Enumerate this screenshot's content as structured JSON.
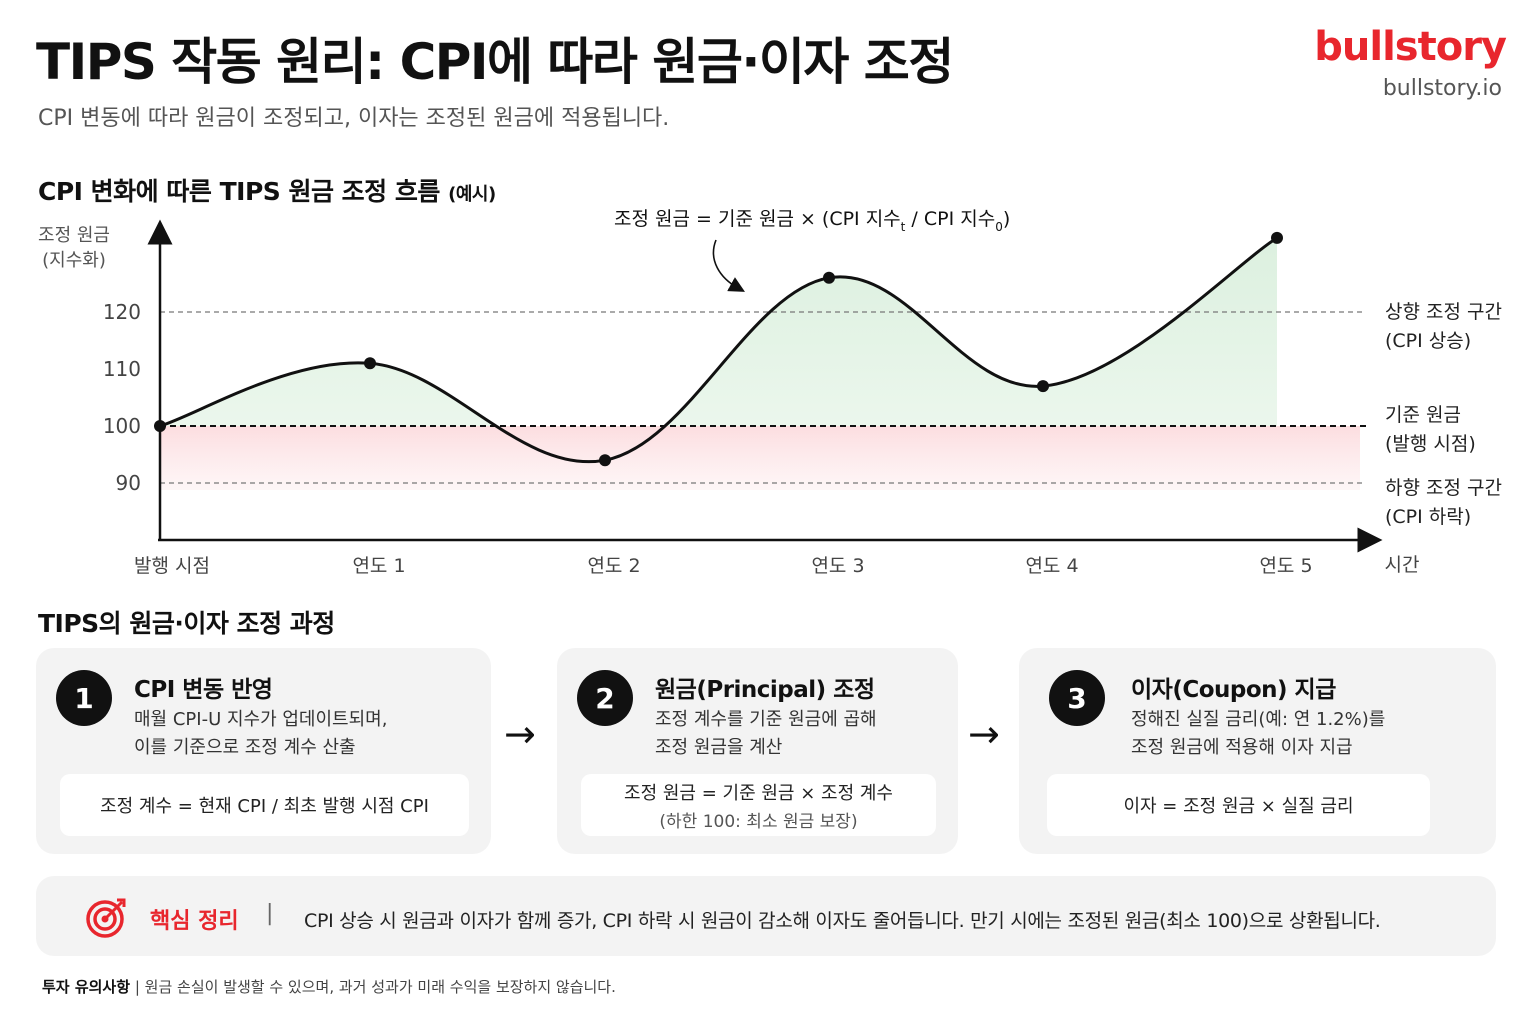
{
  "header": {
    "title": "TIPS 작동 원리: CPI에 따라 원금·이자 조정",
    "subtitle": "CPI 변동에 따라 원금이 조정되고, 이자는 조정된 원금에 적용됩니다.",
    "brand": "bullstory",
    "brand_url": "bullstory.io"
  },
  "chart_section": {
    "title": "CPI 변화에 따른 TIPS 원금 조정 흐름",
    "title_suffix": "(예시)"
  },
  "chart_data": {
    "type": "line",
    "categories": [
      "발행 시점",
      "연도 1",
      "연도 2",
      "연도 3",
      "연도 4",
      "연도 5"
    ],
    "values": [
      100,
      111,
      94,
      126,
      107,
      133
    ],
    "ylabel": [
      "조정 원금",
      "(지수화)"
    ],
    "xlabel": "시간",
    "yticks": [
      90,
      100,
      110,
      120
    ],
    "baseline": 100,
    "reference_lines": [
      {
        "value": 120,
        "label": [
          "상향 조정 구간",
          "(CPI 상승)"
        ]
      },
      {
        "value": 100,
        "label": [
          "기준 원금",
          "(발행 시점)"
        ]
      },
      {
        "value": 90,
        "label": [
          "하향 조정 구간",
          "(CPI 하락)"
        ]
      }
    ],
    "annotation": {
      "text": "조정 원금 = 기준 원금 × (CPI 지수",
      "sub_t": "t",
      "mid": " / CPI 지수",
      "sub_0": "0",
      "end": ")"
    },
    "colors": {
      "line": "#111111",
      "above": "#e6f4e8",
      "below": "#fde6e7"
    },
    "grid": false
  },
  "process": {
    "title": "TIPS의 원금·이자 조정 과정",
    "steps": [
      {
        "num": "1",
        "title": "CPI 변동 반영",
        "desc": [
          "매월 CPI-U 지수가 업데이트되며,",
          "이를 기준으로 조정 계수 산출"
        ],
        "formula": "조정 계수 = 현재 CPI / 최초 발행 시점 CPI",
        "note": ""
      },
      {
        "num": "2",
        "title": "원금(Principal) 조정",
        "desc": [
          "조정 계수를 기준 원금에 곱해",
          "조정 원금을 계산"
        ],
        "formula": "조정 원금 = 기준 원금 × 조정 계수",
        "note": "(하한 100: 최소 원금 보장)"
      },
      {
        "num": "3",
        "title": "이자(Coupon) 지급",
        "desc": [
          "정해진 실질 금리(예: 연 1.2%)를",
          "조정 원금에 적용해 이자 지급"
        ],
        "formula": "이자 = 조정 원금 × 실질 금리",
        "note": ""
      }
    ],
    "arrow": "→"
  },
  "summary": {
    "icon": "target-icon",
    "label": "핵심 정리",
    "separator": "|",
    "text": "CPI 상승 시 원금과 이자가 함께 증가, CPI 하락 시 원금이 감소해 이자도 줄어듭니다. 만기 시에는 조정된 원금(최소 100)으로 상환됩니다."
  },
  "disclaimer": {
    "label": "투자 유의사항",
    "separator": "|",
    "text": "원금 손실이 발생할 수 있으며, 과거 성과가 미래 수익을 보장하지 않습니다."
  }
}
